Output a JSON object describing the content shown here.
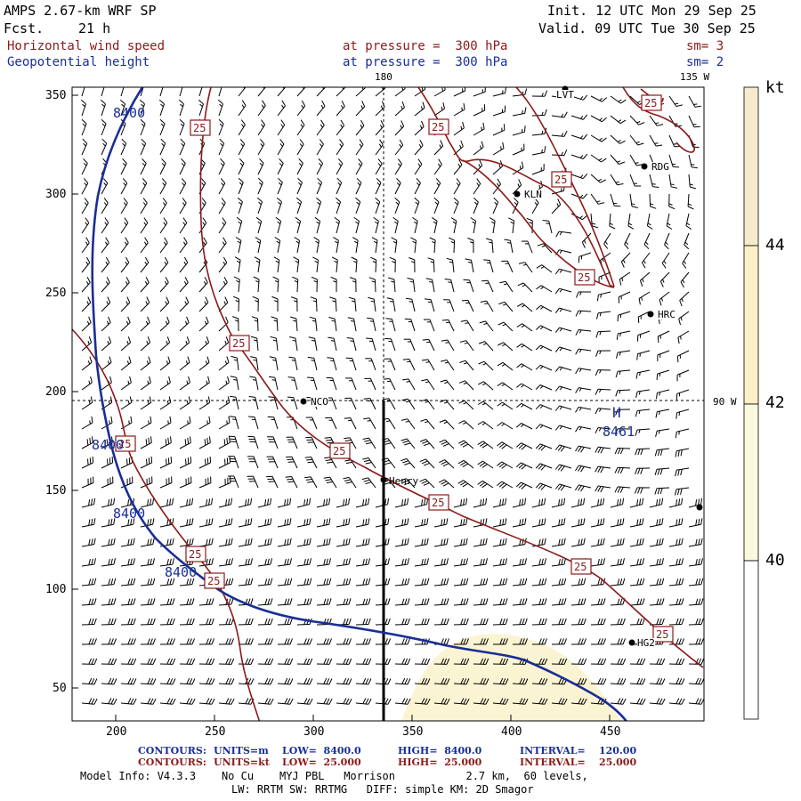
{
  "header": {
    "title": "AMPS 2.67-km WRF SP",
    "fcst_label": "Fcst.",
    "fcst_value": "21 h",
    "init": "Init. 12 UTC Mon 29 Sep 25",
    "valid": "Valid. 09 UTC Tue 30 Sep 25",
    "field1_name": "Horizontal wind speed",
    "field1_level": "at pressure =  300 hPa",
    "field1_sm": "sm= 3",
    "field2_name": "Geopotential height",
    "field2_level": "at pressure =  300 hPa",
    "field2_sm": "sm= 2"
  },
  "map": {
    "x_ticks": [
      "200",
      "250",
      "300",
      "350",
      "400",
      "450"
    ],
    "y_ticks": [
      "350",
      "300",
      "250",
      "200",
      "150",
      "100",
      "50"
    ],
    "lon_top_180": "180",
    "lon_top_135w": "135 W",
    "lon_right_90w": "90 W",
    "stations": [
      "LVT",
      "RDG",
      "KLN",
      "HRC",
      "NCO",
      "Henry",
      "HG2"
    ],
    "height_contour_label": "8400",
    "speed_contour_label": "25",
    "high_marker": "H",
    "high_value": "8461",
    "colors": {
      "height_contour": "#1a2e96",
      "speed_contour": "#8b1a1a",
      "shade_40_44": "#fbf4d3",
      "shade_44_plus": "#f6ebcb",
      "barb": "#000000"
    }
  },
  "colorbar": {
    "unit": "kt",
    "labels": [
      "44",
      "42",
      "40"
    ]
  },
  "footer": {
    "row1": {
      "contours": "CONTOURS:",
      "units": "UNITS=m",
      "low": "LOW=  8400.0",
      "high": "HIGH=  8400.0",
      "interval": "INTERVAL=    120.00"
    },
    "row2": {
      "contours": "CONTOURS:",
      "units": "UNITS=kt",
      "low": "LOW=  25.000",
      "high": "HIGH=  25.000",
      "interval": "INTERVAL=    25.000"
    },
    "model_info": "Model Info: V4.3.3    No Cu    MYJ PBL   Morrison           2.7 km,  60 levels,",
    "model_info2": "LW: RRTM SW: RRTMG   DIFF: simple KM: 2D Smagor"
  }
}
